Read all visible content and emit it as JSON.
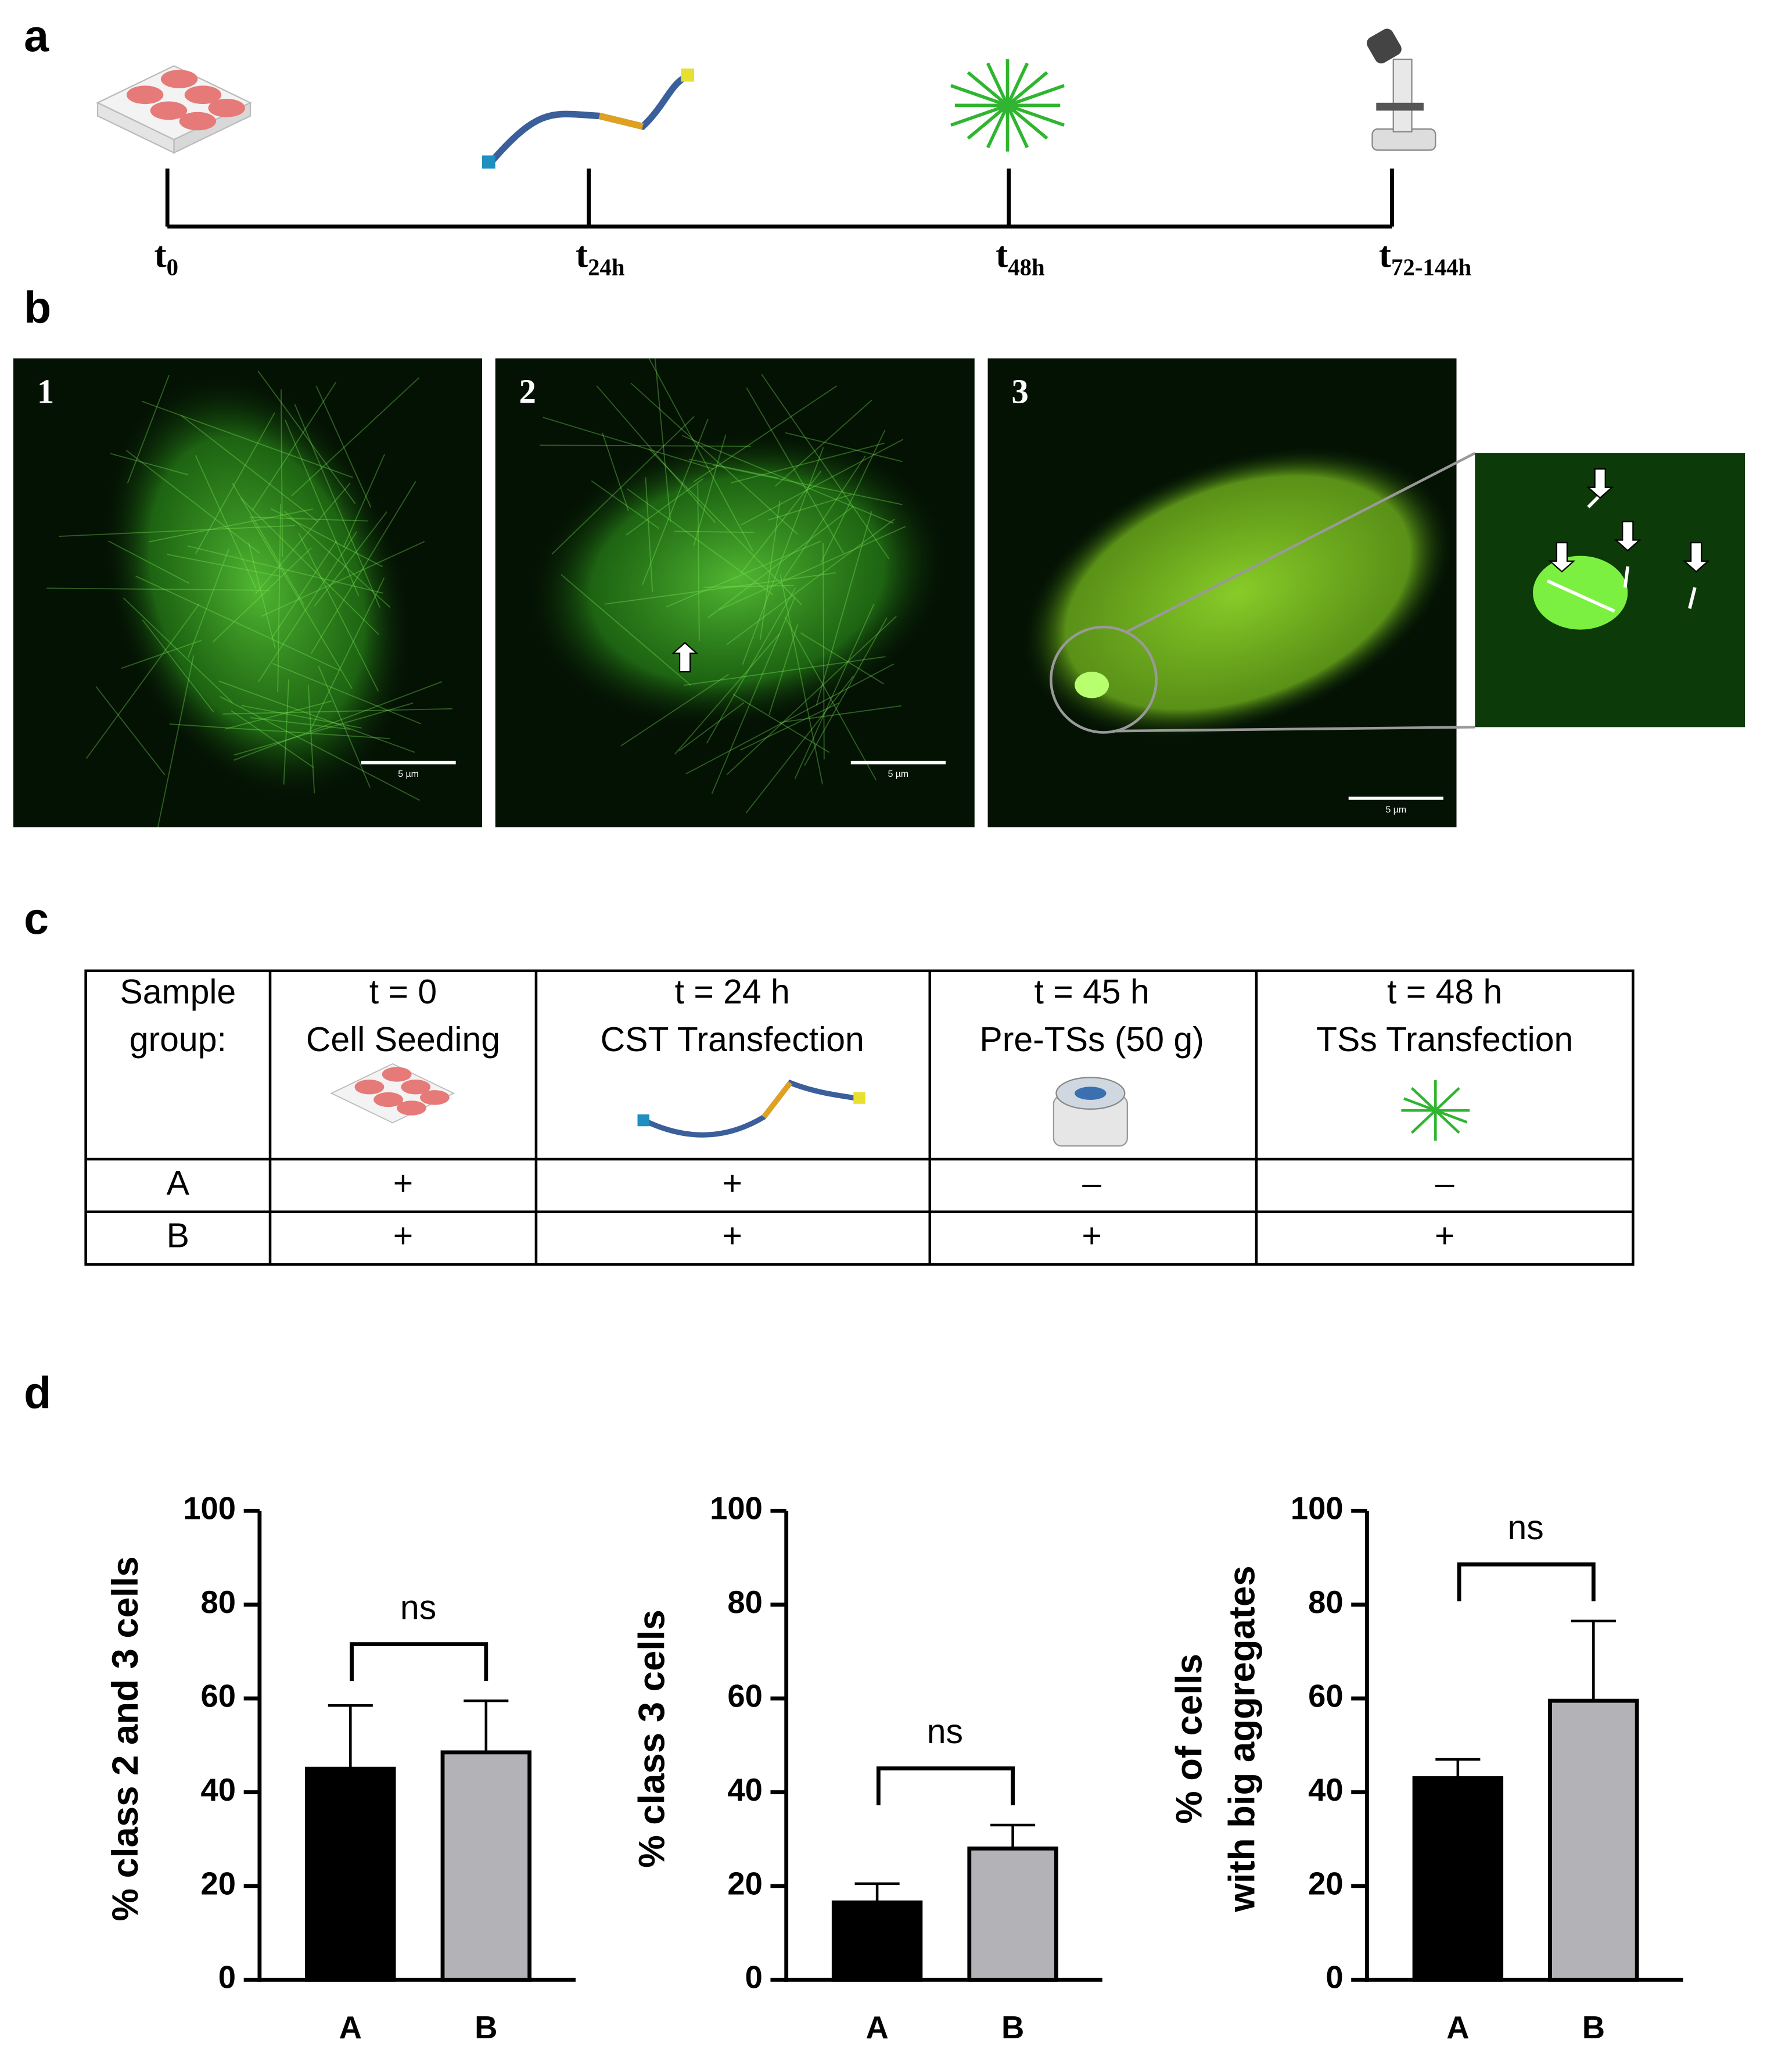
{
  "panel_a": {
    "label": "a",
    "timeline": [
      {
        "main": "t",
        "sub": "0"
      },
      {
        "main": "t",
        "sub": "24h"
      },
      {
        "main": "t",
        "sub": "48h"
      },
      {
        "main": "t",
        "sub": "72-144h"
      }
    ]
  },
  "panel_b": {
    "label": "b",
    "images": [
      {
        "label": "1",
        "scale_bar": "5 µm"
      },
      {
        "label": "2",
        "scale_bar": "5 µm"
      },
      {
        "label": "3",
        "scale_bar": "5 µm"
      }
    ]
  },
  "panel_c": {
    "label": "c",
    "table": {
      "header": [
        [
          "Sample",
          "group:"
        ],
        [
          "t = 0",
          "Cell Seeding"
        ],
        [
          "t = 24 h",
          "CST Transfection"
        ],
        [
          "t = 45 h",
          "Pre-TSs (50 g)"
        ],
        [
          "t = 48 h",
          "TSs Transfection"
        ]
      ],
      "rows": [
        [
          "A",
          "+",
          "+",
          "–",
          "–"
        ],
        [
          "B",
          "+",
          "+",
          "+",
          "+"
        ]
      ]
    }
  },
  "panel_d": {
    "label": "d"
  },
  "chart_data": [
    {
      "type": "bar",
      "ylabel": [
        "% class 2 and 3 cells"
      ],
      "categories": [
        "A",
        "B"
      ],
      "values": [
        45,
        48.5
      ],
      "errors": [
        13.5,
        11
      ],
      "colors": [
        "#000000",
        "#b3b3b7"
      ],
      "ylim": [
        0,
        100
      ],
      "yticks": [
        0,
        20,
        40,
        60,
        80,
        100
      ],
      "annotation": "ns"
    },
    {
      "type": "bar",
      "ylabel": [
        "% class 3 cells"
      ],
      "categories": [
        "A",
        "B"
      ],
      "values": [
        16.5,
        28
      ],
      "errors": [
        4,
        5
      ],
      "colors": [
        "#000000",
        "#b3b3b7"
      ],
      "ylim": [
        0,
        100
      ],
      "yticks": [
        0,
        20,
        40,
        60,
        80,
        100
      ],
      "annotation": "ns"
    },
    {
      "type": "bar",
      "ylabel": [
        "% of cells",
        "with big aggregates"
      ],
      "categories": [
        "A",
        "B"
      ],
      "values": [
        43,
        59.5
      ],
      "errors": [
        4,
        17
      ],
      "colors": [
        "#000000",
        "#b3b3b7"
      ],
      "ylim": [
        0,
        100
      ],
      "yticks": [
        0,
        20,
        40,
        60,
        80,
        100
      ],
      "annotation": "ns"
    }
  ]
}
